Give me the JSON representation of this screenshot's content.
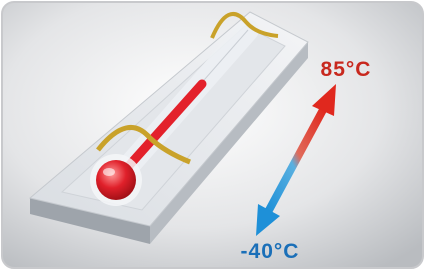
{
  "labels": {
    "high": "85°C",
    "low": "-40°C"
  }
}
